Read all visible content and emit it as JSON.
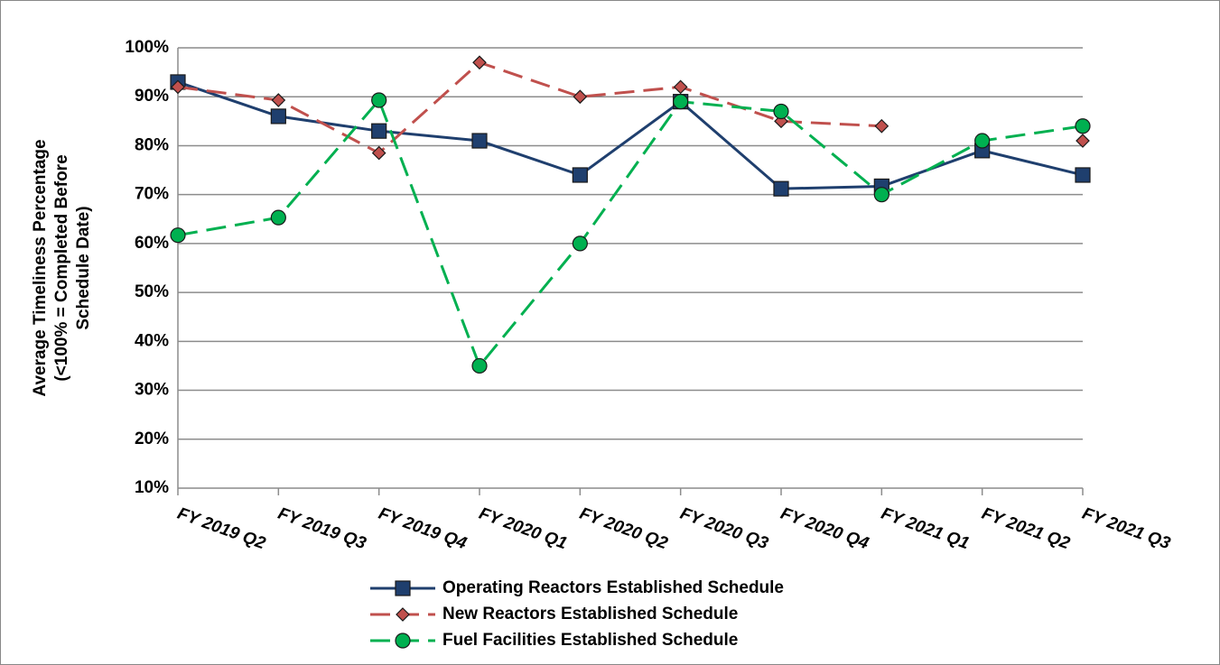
{
  "chart_data": {
    "type": "line",
    "y_label": [
      "Average Timeliness Percentage",
      "(<100% = Completed Before",
      "Schedule Date)"
    ],
    "categories": [
      "FY 2019 Q2",
      "FY 2019 Q3",
      "FY 2019 Q4",
      "FY 2020 Q1",
      "FY 2020 Q2",
      "FY 2020 Q3",
      "FY 2020 Q4",
      "FY 2021 Q1",
      "FY 2021 Q2",
      "FY 2021 Q3"
    ],
    "series": [
      {
        "name": "Operating Reactors Established Schedule",
        "color": "#1f3f6e",
        "marker": "square",
        "dashed": false,
        "values": [
          93,
          86,
          83,
          81,
          74,
          89,
          71.2,
          71.7,
          79,
          74
        ]
      },
      {
        "name": "New Reactors Established Schedule",
        "color": "#c0504d",
        "marker": "diamond",
        "dashed": true,
        "values": [
          92,
          89.3,
          78.5,
          97,
          90,
          92,
          85,
          84,
          null,
          81
        ]
      },
      {
        "name": "Fuel Facilities Established Schedule",
        "color": "#00b050",
        "marker": "circle",
        "dashed": true,
        "values": [
          61.7,
          65.3,
          89.3,
          35,
          60,
          89,
          87,
          70,
          81,
          84
        ]
      }
    ],
    "ylim": [
      10,
      100
    ],
    "yticks": [
      {
        "value": 10,
        "label": "10%"
      },
      {
        "value": 20,
        "label": "20%"
      },
      {
        "value": 30,
        "label": "30%"
      },
      {
        "value": 40,
        "label": "40%"
      },
      {
        "value": 50,
        "label": "50%"
      },
      {
        "value": 60,
        "label": "60%"
      },
      {
        "value": 70,
        "label": "70%"
      },
      {
        "value": 80,
        "label": "80%"
      },
      {
        "value": 90,
        "label": "90%"
      },
      {
        "value": 100,
        "label": "100%"
      }
    ],
    "grid": true,
    "legend": "bottom"
  }
}
